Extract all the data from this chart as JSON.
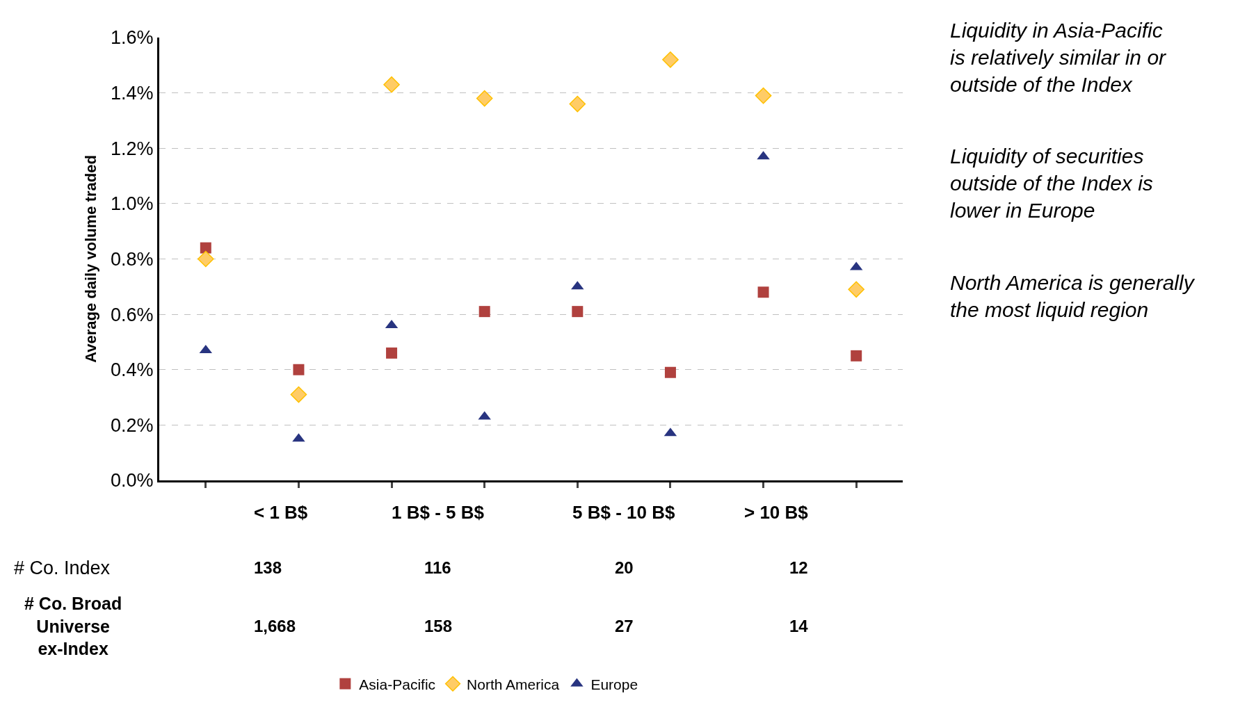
{
  "chart_data": {
    "type": "scatter",
    "ylabel": "Average daily volume traded",
    "categories": [
      null,
      null,
      null,
      null,
      null,
      null,
      null,
      null
    ],
    "series": [
      {
        "name": "Asia-Pacific",
        "color": "#b0413e",
        "marker": "square",
        "values": [
          0.84,
          0.4,
          0.46,
          0.61,
          0.61,
          0.39,
          0.68,
          0.45
        ]
      },
      {
        "name": "North America",
        "color": "#ffc000",
        "marker": "diamond",
        "values": [
          0.8,
          0.31,
          1.43,
          1.38,
          1.36,
          1.52,
          1.39,
          0.69
        ]
      },
      {
        "name": "Europe",
        "color": "#283480",
        "marker": "triangle",
        "values": [
          0.47,
          0.15,
          0.56,
          0.23,
          0.7,
          0.17,
          1.17,
          0.77
        ]
      }
    ],
    "ylim": [
      0,
      1.6
    ],
    "yticks": [
      {
        "value": 0,
        "label": "0.0%"
      },
      {
        "value": 0.2,
        "label": "0.2%"
      },
      {
        "value": 0.4,
        "label": "0.4%"
      },
      {
        "value": 0.6,
        "label": "0.6%"
      },
      {
        "value": 0.8,
        "label": "0.8%"
      },
      {
        "value": 1.0,
        "label": "1.0%"
      },
      {
        "value": 1.2,
        "label": "1.2%"
      },
      {
        "value": 1.4,
        "label": "1.4%"
      },
      {
        "value": 1.6,
        "label": "1.6%"
      }
    ],
    "grid": "y",
    "legend": "bottom",
    "tick_labels": "y",
    "annotations": [
      "< 1 B$",
      "1 B$ - 5 B$",
      "5 B$ - 10 B$",
      "> 10 B$",
      "# Co. Index",
      "138",
      "116",
      "20",
      "12",
      "# Co. Broad Universe ex-Index",
      "1,668",
      "158",
      "27",
      "14",
      "Liquidity in Asia-Pacific is relatively similar in or outside of the Index",
      "Liquidity of securities outside of the Index is lower in Europe",
      "North America is generally the most liquid region"
    ]
  }
}
